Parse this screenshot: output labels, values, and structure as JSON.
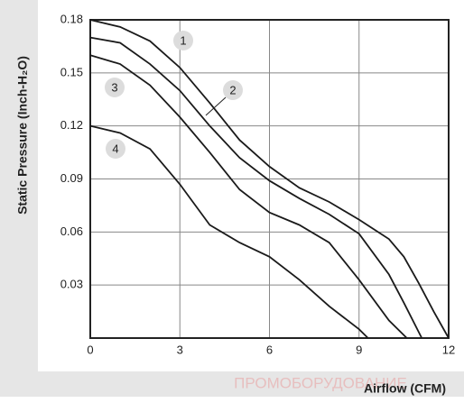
{
  "chart_data": {
    "type": "line",
    "y_label": "Static Pressure (Inch-H₂O)",
    "x_label": "Airflow (CFM)",
    "watermark": "ПРОМОБОРУДОВАНИЕ",
    "xlim": [
      0,
      12
    ],
    "xticks": [
      0,
      3,
      6,
      9,
      12
    ],
    "ylim": [
      0,
      0.18
    ],
    "yticks": [
      0.03,
      0.06,
      0.09,
      0.12,
      0.15,
      0.18
    ],
    "grid": true,
    "series": [
      {
        "name": "1",
        "color": "#1a1a1a",
        "x": [
          0,
          1,
          2,
          3,
          4,
          5,
          6,
          7,
          8,
          9,
          10,
          10.5,
          11,
          11.5,
          12
        ],
        "values": [
          0.18,
          0.176,
          0.168,
          0.153,
          0.133,
          0.112,
          0.097,
          0.085,
          0.077,
          0.067,
          0.056,
          0.046,
          0.031,
          0.015,
          0
        ]
      },
      {
        "name": "2",
        "color": "#1a1a1a",
        "x": [
          0,
          1,
          2,
          3,
          4,
          5,
          6,
          7,
          8,
          9,
          10,
          10.5,
          11.1
        ],
        "values": [
          0.17,
          0.167,
          0.155,
          0.14,
          0.12,
          0.102,
          0.089,
          0.079,
          0.07,
          0.059,
          0.036,
          0.02,
          0
        ]
      },
      {
        "name": "3",
        "color": "#1a1a1a",
        "x": [
          0,
          1,
          2,
          3,
          4,
          5,
          6,
          7,
          8,
          9,
          10,
          10.6
        ],
        "values": [
          0.16,
          0.155,
          0.143,
          0.125,
          0.105,
          0.084,
          0.071,
          0.064,
          0.054,
          0.033,
          0.01,
          0
        ]
      },
      {
        "name": "4",
        "color": "#1a1a1a",
        "x": [
          0,
          1,
          2,
          3,
          4,
          5,
          6,
          7,
          8,
          9,
          9.3
        ],
        "values": [
          0.12,
          0.116,
          0.107,
          0.087,
          0.064,
          0.054,
          0.046,
          0.033,
          0.018,
          0.005,
          0
        ]
      }
    ]
  }
}
